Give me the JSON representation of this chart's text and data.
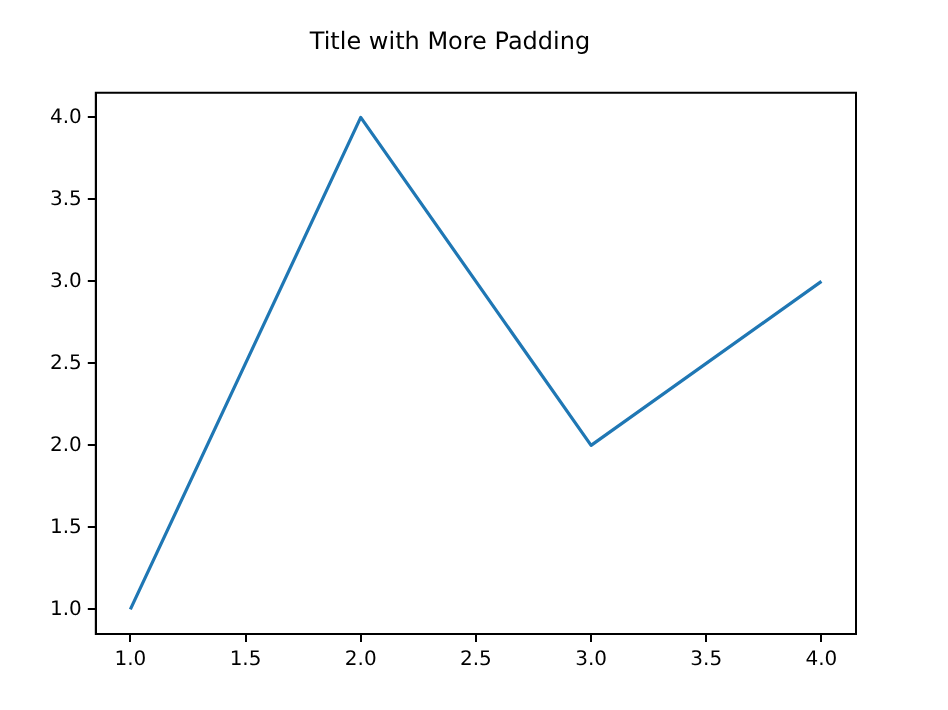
{
  "chart_data": {
    "type": "line",
    "title": "Title with More Padding",
    "x": [
      1,
      2,
      3,
      4
    ],
    "series": [
      {
        "color": "#1f77b4",
        "values": [
          1,
          4,
          2,
          3
        ]
      }
    ],
    "xlim": [
      0.85,
      4.15
    ],
    "xticks": [
      {
        "value": 1,
        "label": "1.0"
      },
      {
        "value": 1.5,
        "label": "1.5"
      },
      {
        "value": 2,
        "label": "2.0"
      },
      {
        "value": 2.5,
        "label": "2.5"
      },
      {
        "value": 3,
        "label": "3.0"
      },
      {
        "value": 3.5,
        "label": "3.5"
      },
      {
        "value": 4,
        "label": "4.0"
      }
    ],
    "ylim": [
      0.85,
      4.15
    ],
    "yticks": [
      {
        "value": 1,
        "label": "1.0"
      },
      {
        "value": 1.5,
        "label": "1.5"
      },
      {
        "value": 2,
        "label": "2.0"
      },
      {
        "value": 2.5,
        "label": "2.5"
      },
      {
        "value": 3,
        "label": "3.0"
      },
      {
        "value": 3.5,
        "label": "3.5"
      },
      {
        "value": 4,
        "label": "4.0"
      }
    ],
    "grid": false,
    "legend": false,
    "marker": "none",
    "line_style": "solid"
  }
}
